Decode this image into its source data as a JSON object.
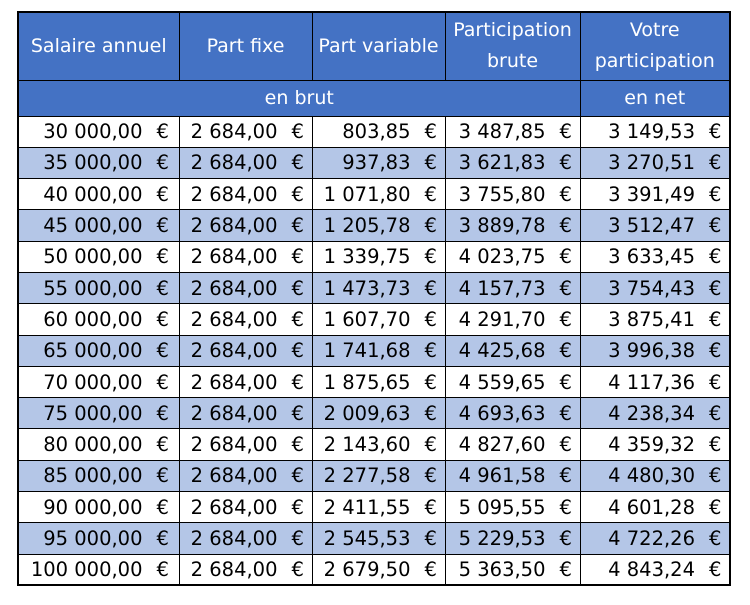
{
  "columns": {
    "salaire": "Salaire annuel",
    "fixe": "Part fixe",
    "variable": "Part variable",
    "brute": "Participation brute",
    "votre": "Votre participation"
  },
  "subheader": {
    "brut": "en brut",
    "net": "en net"
  },
  "currency": "€",
  "colors": {
    "header_bg": "#4472c4",
    "header_text": "#ffffff",
    "alt_row": "#b4c6e7",
    "plain_row": "#ffffff"
  },
  "rows": [
    [
      "30 000,00",
      "2 684,00",
      "803,85",
      "3 487,85",
      "3 149,53"
    ],
    [
      "35 000,00",
      "2 684,00",
      "937,83",
      "3 621,83",
      "3 270,51"
    ],
    [
      "40 000,00",
      "2 684,00",
      "1 071,80",
      "3 755,80",
      "3 391,49"
    ],
    [
      "45 000,00",
      "2 684,00",
      "1 205,78",
      "3 889,78",
      "3 512,47"
    ],
    [
      "50 000,00",
      "2 684,00",
      "1 339,75",
      "4 023,75",
      "3 633,45"
    ],
    [
      "55 000,00",
      "2 684,00",
      "1 473,73",
      "4 157,73",
      "3 754,43"
    ],
    [
      "60 000,00",
      "2 684,00",
      "1 607,70",
      "4 291,70",
      "3 875,41"
    ],
    [
      "65 000,00",
      "2 684,00",
      "1 741,68",
      "4 425,68",
      "3 996,38"
    ],
    [
      "70 000,00",
      "2 684,00",
      "1 875,65",
      "4 559,65",
      "4 117,36"
    ],
    [
      "75 000,00",
      "2 684,00",
      "2 009,63",
      "4 693,63",
      "4 238,34"
    ],
    [
      "80 000,00",
      "2 684,00",
      "2 143,60",
      "4 827,60",
      "4 359,32"
    ],
    [
      "85 000,00",
      "2 684,00",
      "2 277,58",
      "4 961,58",
      "4 480,30"
    ],
    [
      "90 000,00",
      "2 684,00",
      "2 411,55",
      "5 095,55",
      "4 601,28"
    ],
    [
      "95 000,00",
      "2 684,00",
      "2 545,53",
      "5 229,53",
      "4 722,26"
    ],
    [
      "100 000,00",
      "2 684,00",
      "2 679,50",
      "5 363,50",
      "4 843,24"
    ]
  ]
}
